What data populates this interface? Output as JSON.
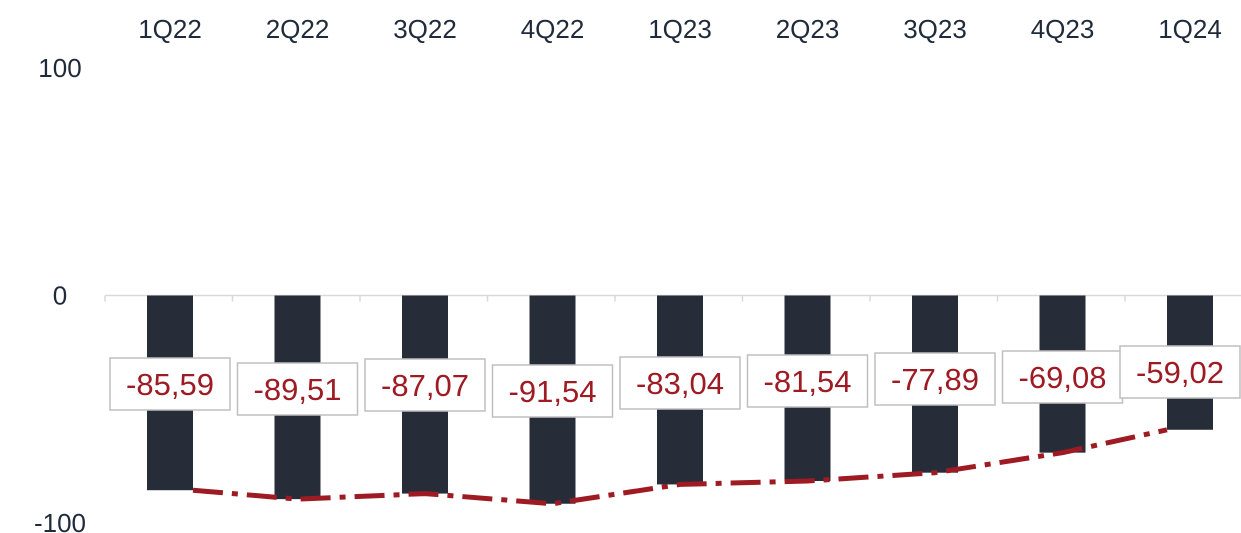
{
  "chart_data": {
    "type": "bar",
    "title": "",
    "xlabel": "",
    "ylabel": "",
    "categories": [
      "1Q22",
      "2Q22",
      "3Q22",
      "4Q22",
      "1Q23",
      "2Q23",
      "3Q23",
      "4Q23",
      "1Q24"
    ],
    "series": [
      {
        "type": "bar",
        "values": [
          -85.59,
          -89.51,
          -87.07,
          -91.54,
          -83.04,
          -81.54,
          -77.89,
          -69.08,
          -59.02
        ],
        "color": "#262d38"
      },
      {
        "type": "line",
        "style": "dashed",
        "values": [
          -85.59,
          -89.51,
          -87.07,
          -91.54,
          -83.04,
          -81.54,
          -77.89,
          -69.08,
          -59.02
        ],
        "color": "#9e1b23"
      }
    ],
    "data_labels": [
      "-85,59",
      "-89,51",
      "-87,07",
      "-91,54",
      "-83,04",
      "-81,54",
      "-77,89",
      "-69,08",
      "-59,02"
    ],
    "y_ticks": [
      "100",
      "0",
      "-100"
    ],
    "y_tick_values": [
      100,
      0,
      -100
    ],
    "ylim": [
      -100,
      100
    ],
    "x_axis_position": "top",
    "grid": false,
    "legend": "none",
    "colors": {
      "bar": "#262d38",
      "line": "#9e1b23",
      "label_text": "#9e1b23",
      "label_border": "#bfbfbf",
      "axis_line": "#d9d9d9",
      "tick_text": "#1f2a3a"
    }
  }
}
